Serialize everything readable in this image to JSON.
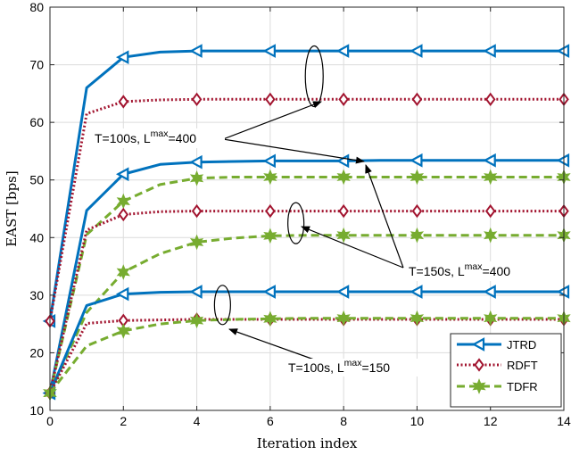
{
  "chart_data": {
    "type": "line",
    "xlabel": "Iteration index",
    "ylabel": "EAST [bps]",
    "xlim": [
      0,
      14
    ],
    "ylim": [
      10,
      80
    ],
    "xticks": [
      0,
      2,
      4,
      6,
      8,
      10,
      12,
      14
    ],
    "yticks": [
      10,
      20,
      30,
      40,
      50,
      60,
      70,
      80
    ],
    "grid": true,
    "legend_position": "bottom-right",
    "x": [
      0,
      1,
      2,
      3,
      4,
      5,
      6,
      7,
      8,
      9,
      10,
      11,
      12,
      13,
      14
    ],
    "groups": [
      {
        "label": "T=100s, Lmax=400",
        "series": [
          {
            "name": "JTRD",
            "values": [
              25.5,
              66.0,
              71.3,
              72.2,
              72.4,
              72.4,
              72.4,
              72.4,
              72.4,
              72.4,
              72.4,
              72.4,
              72.4,
              72.4,
              72.4
            ]
          },
          {
            "name": "RDFT",
            "values": [
              25.5,
              61.5,
              63.6,
              63.9,
              64.0,
              64.0,
              64.0,
              64.0,
              64.0,
              64.0,
              64.0,
              64.0,
              64.0,
              64.0,
              64.0
            ]
          }
        ]
      },
      {
        "label": "T=150s, Lmax=400",
        "series": [
          {
            "name": "JTRD",
            "values": [
              13.0,
              44.7,
              51.0,
              52.7,
              53.1,
              53.2,
              53.3,
              53.3,
              53.3,
              53.4,
              53.4,
              53.4,
              53.4,
              53.4,
              53.4
            ]
          },
          {
            "name": "TDFR",
            "values": [
              13.0,
              40.5,
              46.3,
              49.2,
              50.3,
              50.5,
              50.5,
              50.5,
              50.5,
              50.5,
              50.5,
              50.5,
              50.5,
              50.5,
              50.5
            ]
          },
          {
            "name": "RDFT",
            "values": [
              13.0,
              41.3,
              44.0,
              44.5,
              44.6,
              44.6,
              44.6,
              44.6,
              44.6,
              44.6,
              44.6,
              44.6,
              44.6,
              44.6,
              44.6
            ]
          },
          {
            "name": "TDFR",
            "values": [
              13.0,
              27.0,
              34.0,
              37.2,
              39.2,
              39.9,
              40.3,
              40.4,
              40.4,
              40.4,
              40.4,
              40.4,
              40.4,
              40.4,
              40.4
            ]
          }
        ]
      },
      {
        "label": "T=100s, Lmax=150",
        "series": [
          {
            "name": "JTRD",
            "values": [
              13.0,
              28.2,
              30.2,
              30.5,
              30.6,
              30.6,
              30.6,
              30.6,
              30.6,
              30.6,
              30.6,
              30.6,
              30.6,
              30.6,
              30.6
            ]
          },
          {
            "name": "RDFT",
            "values": [
              13.0,
              25.1,
              25.6,
              25.7,
              25.8,
              25.8,
              25.8,
              25.8,
              25.8,
              25.8,
              25.8,
              25.8,
              25.8,
              25.8,
              25.8
            ]
          },
          {
            "name": "TDFR",
            "values": [
              13.0,
              21.2,
              23.8,
              25.0,
              25.6,
              25.8,
              25.9,
              26.0,
              26.0,
              26.0,
              26.0,
              26.0,
              26.0,
              26.0,
              26.0
            ]
          }
        ]
      }
    ],
    "legend": [
      {
        "name": "JTRD",
        "color": "#0072BD",
        "marker": "triangle-left",
        "style": "solid"
      },
      {
        "name": "RDFT",
        "color": "#A2142F",
        "marker": "diamond",
        "style": "dotted"
      },
      {
        "name": "TDFR",
        "color": "#77AC30",
        "marker": "hexagram",
        "style": "dashed"
      }
    ],
    "annotations": [
      {
        "text": "T=100s, L",
        "sup": "max",
        "tail": "=400"
      },
      {
        "text": "T=150s, L",
        "sup": "max",
        "tail": "=400"
      },
      {
        "text": "T=100s, L",
        "sup": "max",
        "tail": "=150"
      }
    ]
  }
}
